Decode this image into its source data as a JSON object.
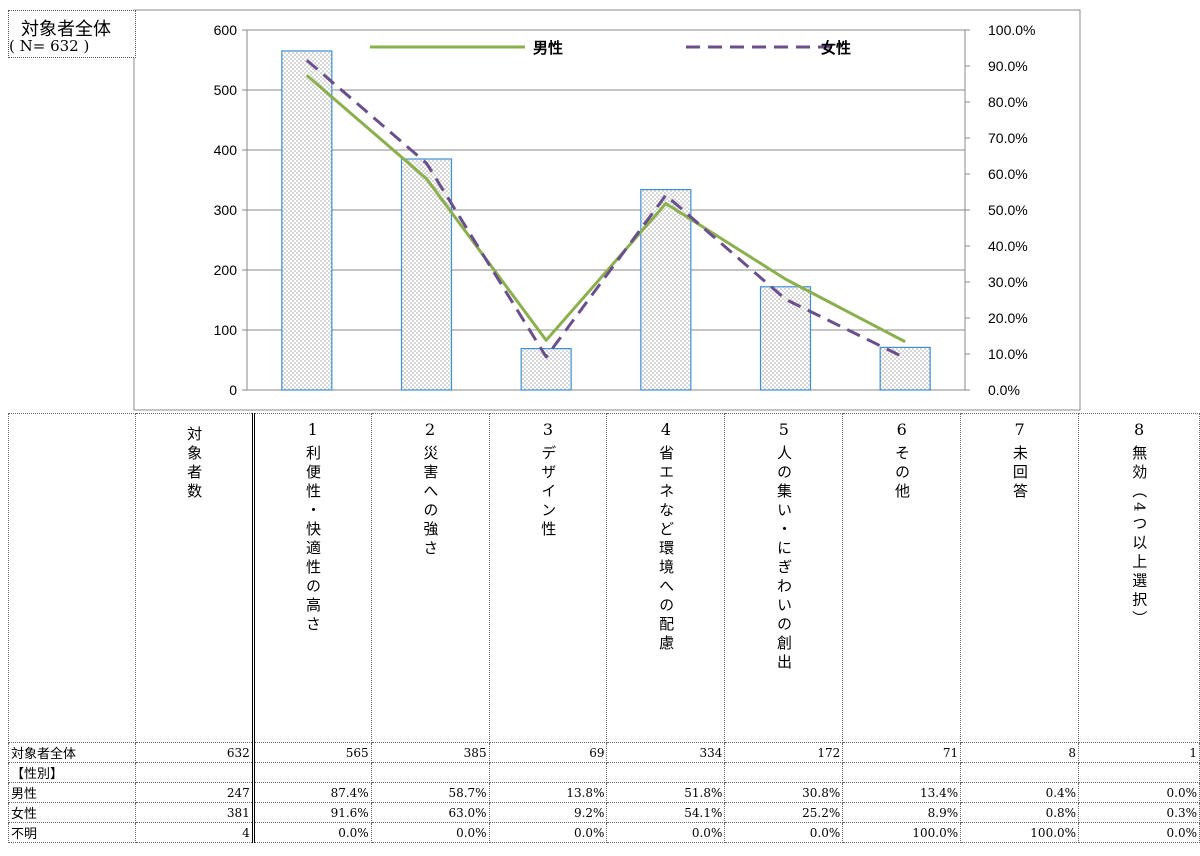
{
  "label_box": {
    "line1": "対象者全体",
    "line2": "( N= 632 )"
  },
  "chart_data": {
    "type": "bar",
    "categories": [
      "1",
      "2",
      "3",
      "4",
      "5",
      "6"
    ],
    "values": [
      565,
      385,
      69,
      334,
      172,
      71
    ],
    "ylim": [
      0,
      600
    ],
    "yticks": [
      "0",
      "100",
      "200",
      "300",
      "400",
      "500",
      "600"
    ],
    "y2lim": [
      0,
      100
    ],
    "y2ticks": [
      "0.0%",
      "10.0%",
      "20.0%",
      "30.0%",
      "40.0%",
      "50.0%",
      "60.0%",
      "70.0%",
      "80.0%",
      "90.0%",
      "100.0%"
    ],
    "series": [
      {
        "name": "男性",
        "type": "line",
        "axis": "right",
        "values": [
          87.4,
          58.7,
          13.8,
          51.8,
          30.8,
          13.4
        ],
        "color": "#8ab04e",
        "style": "solid"
      },
      {
        "name": "女性",
        "type": "line",
        "axis": "right",
        "values": [
          91.6,
          63.0,
          9.2,
          54.1,
          25.2,
          8.9
        ],
        "color": "#6a4f8c",
        "style": "dashed"
      }
    ],
    "bar_color": "#3f8fd6",
    "grid": true,
    "legend": "top"
  },
  "table": {
    "corner": "",
    "count_header": "対象者数",
    "columns": [
      {
        "num": "1",
        "label": "利便性・快適性の高さ"
      },
      {
        "num": "2",
        "label": "災害への強さ"
      },
      {
        "num": "3",
        "label": "デザイン性"
      },
      {
        "num": "4",
        "label": "省エネなど環境への配慮"
      },
      {
        "num": "5",
        "label": "人の集い・にぎわいの創出"
      },
      {
        "num": "6",
        "label": "その他"
      },
      {
        "num": "7",
        "label": "未回答"
      },
      {
        "num": "8",
        "label": "無効（4つ以上選択）"
      }
    ],
    "rows": [
      {
        "label": "対象者全体",
        "count": "632",
        "values": [
          "565",
          "385",
          "69",
          "334",
          "172",
          "71",
          "8",
          "1"
        ]
      },
      {
        "label": "【性別】",
        "count": "",
        "values": [
          "",
          "",
          "",
          "",
          "",
          "",
          "",
          ""
        ]
      },
      {
        "label": "男性",
        "count": "247",
        "values": [
          "87.4%",
          "58.7%",
          "13.8%",
          "51.8%",
          "30.8%",
          "13.4%",
          "0.4%",
          "0.0%"
        ]
      },
      {
        "label": "女性",
        "count": "381",
        "values": [
          "91.6%",
          "63.0%",
          "9.2%",
          "54.1%",
          "25.2%",
          "8.9%",
          "0.8%",
          "0.3%"
        ]
      },
      {
        "label": "不明",
        "count": "4",
        "values": [
          "0.0%",
          "0.0%",
          "0.0%",
          "0.0%",
          "0.0%",
          "100.0%",
          "100.0%",
          "0.0%"
        ]
      }
    ]
  }
}
